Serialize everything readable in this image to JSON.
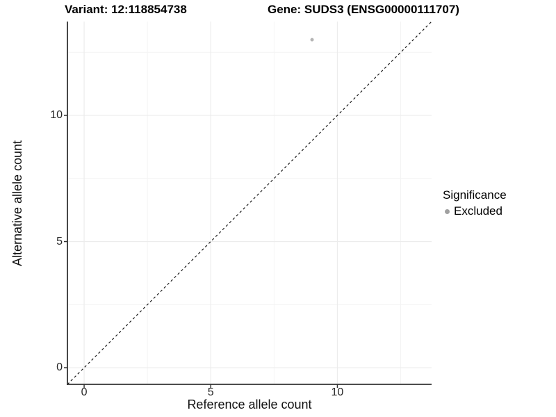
{
  "chart_data": {
    "type": "scatter",
    "title_variant": "Variant: 12:118854738",
    "title_gene": "Gene: SUDS3 (ENSG00000111707)",
    "xlabel": "Reference allele count",
    "ylabel": "Alternative allele count",
    "xlim": [
      -0.66,
      13.72
    ],
    "ylim": [
      -0.66,
      13.72
    ],
    "x_major_ticks": [
      0,
      5,
      10
    ],
    "y_major_ticks": [
      0,
      5,
      10
    ],
    "x_minor_ticks": [
      2.5,
      7.5,
      12.5
    ],
    "y_minor_ticks": [
      2.5,
      7.5,
      12.5
    ],
    "grid": "major and minor, very light gray, white background",
    "points": [
      {
        "x": 9,
        "y": 13,
        "series": "Excluded"
      }
    ],
    "point_color": "#b5b5b5",
    "point_radius": 2.5,
    "identity_line": {
      "style": "dashed",
      "color": "#1a1a1a",
      "from": -0.66,
      "to": 13.72
    },
    "legend": {
      "title": "Significance",
      "position": "right",
      "items": [
        {
          "label": "Excluded",
          "color": "#a0a0a0",
          "marker": "circle"
        }
      ]
    },
    "colors": {
      "axis_line": "#333333",
      "tick_label": "#262626",
      "grid_major": "#ececec",
      "grid_minor": "#f4f4f4",
      "background": "#ffffff"
    }
  }
}
